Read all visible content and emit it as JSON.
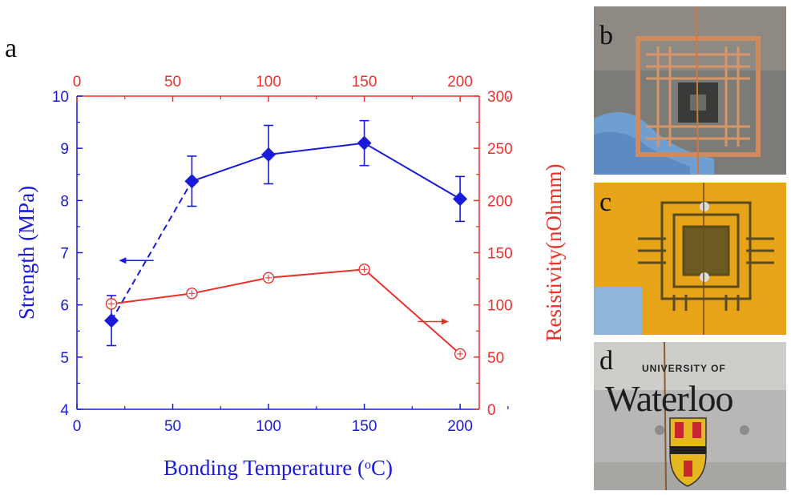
{
  "panel_labels": {
    "a": "a",
    "b": "b",
    "c": "c",
    "d": "d"
  },
  "photo_d_text": {
    "top": "UNIVERSITY OF",
    "main": "Waterloo"
  },
  "colors": {
    "strength": "#1a1adb",
    "resistivity": "#e8322a",
    "background": "#ffffff"
  },
  "chart_data": {
    "type": "line",
    "xlabel": "Bonding Temperature (",
    "xlabel_sup": "o",
    "xlabel_end": "C)",
    "ylabel_left": "Strength (MPa)",
    "ylabel_right": "Resistivity(nOhmm)",
    "x_bottom": {
      "range": [
        0,
        210
      ],
      "ticks": [
        0,
        50,
        100,
        150,
        200
      ]
    },
    "x_top": {
      "range": [
        0,
        210
      ],
      "ticks": [
        0,
        50,
        100,
        150,
        200
      ]
    },
    "y_left": {
      "range": [
        4,
        10
      ],
      "ticks": [
        4,
        5,
        6,
        7,
        8,
        9,
        10
      ]
    },
    "y_right": {
      "range": [
        0,
        300
      ],
      "ticks": [
        0,
        50,
        100,
        150,
        200,
        250,
        300
      ]
    },
    "series": [
      {
        "axis": "left",
        "marker": "diamond",
        "x": [
          18,
          60,
          100,
          150,
          200
        ],
        "y": [
          5.7,
          8.37,
          8.88,
          9.1,
          8.03
        ],
        "err": [
          0.48,
          0.48,
          0.56,
          0.43,
          0.43
        ],
        "dashed_segments": [
          0
        ]
      },
      {
        "axis": "right",
        "marker": "circle-plus",
        "x": [
          18,
          60,
          100,
          150,
          200
        ],
        "y": [
          101,
          111,
          126,
          134,
          53
        ]
      }
    ],
    "arrows": [
      {
        "axis": "left",
        "direction": "left",
        "x": [
          24,
          40
        ],
        "y": 6.85
      },
      {
        "axis": "right",
        "direction": "right",
        "x": [
          178,
          192
        ],
        "y": 84
      }
    ]
  }
}
